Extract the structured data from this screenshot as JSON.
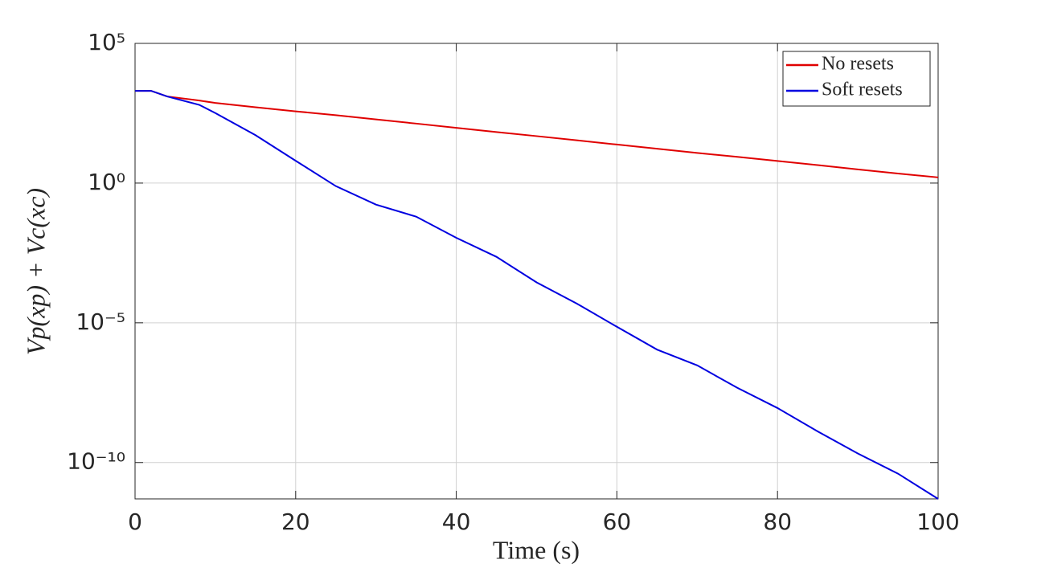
{
  "chart_data": {
    "type": "line",
    "log_y": true,
    "grid": true,
    "legend": "top-right",
    "xlabel": "Time (s)",
    "ylabel": "Vp(xp) + Vc(xc)",
    "x": [
      0,
      2,
      4,
      8,
      10,
      15,
      20,
      25,
      30,
      35,
      40,
      45,
      50,
      55,
      60,
      65,
      70,
      75,
      80,
      85,
      90,
      95,
      100
    ],
    "series": [
      {
        "name": "No resets",
        "color": "#e00000",
        "values": [
          2000,
          2000,
          1260,
          900,
          740,
          520,
          370,
          270,
          190,
          135,
          95,
          67,
          48,
          34,
          24,
          17,
          12,
          8.7,
          6.2,
          4.4,
          3.1,
          2.2,
          1.6
        ]
      },
      {
        "name": "Soft resets",
        "color": "#0000e0",
        "values": [
          2000,
          2000,
          1260,
          630,
          320,
          52,
          6.3,
          0.78,
          0.17,
          0.063,
          0.011,
          0.0023,
          0.00028,
          4.9e-05,
          7.2e-06,
          1.1e-06,
          3e-07,
          4.7e-08,
          8.9e-09,
          1.3e-09,
          2.1e-10,
          4e-11,
          5e-12
        ]
      }
    ],
    "xlim": [
      0,
      100
    ],
    "xticks": [
      0,
      20,
      40,
      60,
      80,
      100
    ],
    "ylim": [
      5e-12,
      100000
    ],
    "yticks": [
      {
        "value": 1e-10,
        "label": "10⁻¹⁰"
      },
      {
        "value": 1e-05,
        "label": "10⁻⁵"
      },
      {
        "value": 1,
        "label": "10⁰"
      },
      {
        "value": 100000,
        "label": "10⁵"
      }
    ]
  }
}
